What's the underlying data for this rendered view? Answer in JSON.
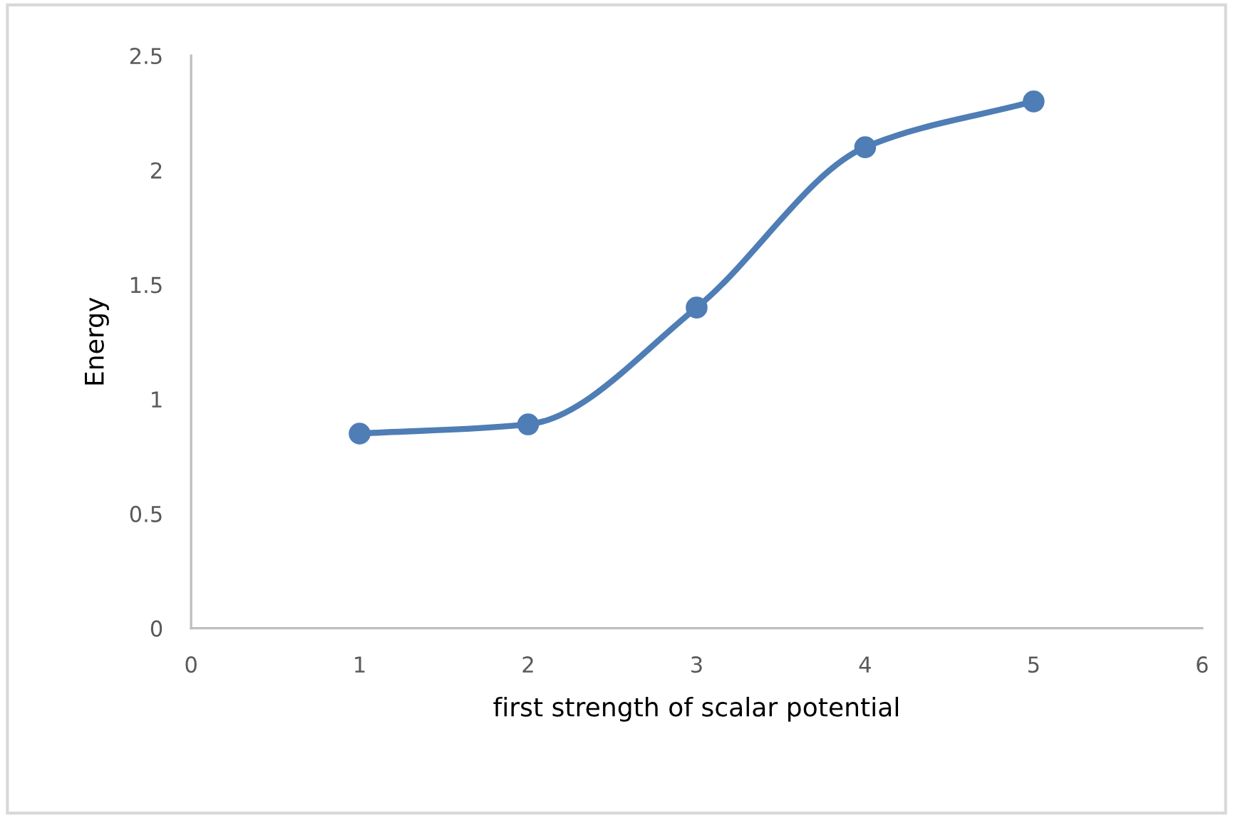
{
  "chart_data": {
    "type": "line",
    "xlabel": "first strength of scalar potential",
    "ylabel": "Energy",
    "x": [
      1,
      2,
      3,
      4,
      5
    ],
    "series": [
      {
        "color": "#4f7db5",
        "values": [
          0.85,
          0.89,
          1.4,
          2.1,
          2.3
        ]
      }
    ],
    "xlim": [
      0,
      6
    ],
    "xticks": [
      0,
      1,
      2,
      3,
      4,
      5,
      6
    ],
    "ylim": [
      0,
      2.5
    ],
    "yticks": [
      0,
      0.5,
      1,
      1.5,
      2,
      2.5
    ],
    "grid": false,
    "legend": false,
    "marker": "circle",
    "line_style": "solid"
  }
}
